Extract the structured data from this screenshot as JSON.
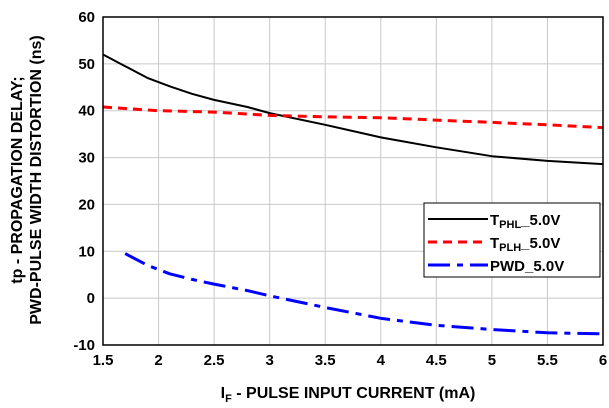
{
  "chart_data": {
    "type": "line",
    "xlabel": {
      "main": "I",
      "sub": "F",
      "rest": " - PULSE INPUT CURRENT (mA)"
    },
    "ylabel": {
      "line1": "tp - PROPAGATION DELAY;",
      "line2": "PWD-PULSE WIDTH DISTORTION (ns)"
    },
    "xlim": [
      1.5,
      6
    ],
    "ylim": [
      -10,
      60
    ],
    "xticks": [
      1.5,
      2,
      2.5,
      3,
      3.5,
      4,
      4.5,
      5,
      5.5,
      6
    ],
    "yticks": [
      -10,
      0,
      10,
      20,
      30,
      40,
      50,
      60
    ],
    "grid": true,
    "legend_position": "lower-right",
    "series": [
      {
        "name": "TPHL_5.0V",
        "name_parts": {
          "main": "T",
          "sub": "PHL",
          "rest": "_5.0V"
        },
        "color": "#000000",
        "style": "solid",
        "x": [
          1.5,
          1.7,
          1.9,
          2.1,
          2.3,
          2.5,
          2.8,
          3.0,
          3.5,
          4.0,
          4.5,
          5.0,
          5.5,
          6.0
        ],
        "y": [
          52,
          49.5,
          47,
          45.2,
          43.6,
          42.3,
          40.8,
          39.5,
          37,
          34.3,
          32.2,
          30.3,
          29.3,
          28.6
        ]
      },
      {
        "name": "TPLH_5.0V",
        "name_parts": {
          "main": "T",
          "sub": "PLH",
          "rest": "_5.0V"
        },
        "color": "#ff0000",
        "style": "dashed",
        "x": [
          1.5,
          2.0,
          2.5,
          3.0,
          3.5,
          4.0,
          4.5,
          5.0,
          5.5,
          6.0
        ],
        "y": [
          40.8,
          40,
          39.7,
          39,
          38.7,
          38.5,
          38,
          37.5,
          37,
          36.4
        ]
      },
      {
        "name": "PWD_5.0V",
        "name_parts": {
          "main": "PWD",
          "sub": "",
          "rest": "_5.0V"
        },
        "color": "#0000ff",
        "style": "dashdot",
        "x": [
          1.7,
          1.9,
          2.1,
          2.3,
          2.5,
          2.8,
          3.0,
          3.5,
          4.0,
          4.5,
          5.0,
          5.5,
          6.0
        ],
        "y": [
          9.5,
          7,
          5.2,
          4,
          3,
          1.6,
          0.5,
          -2,
          -4.3,
          -5.8,
          -6.7,
          -7.4,
          -7.6
        ]
      }
    ]
  }
}
